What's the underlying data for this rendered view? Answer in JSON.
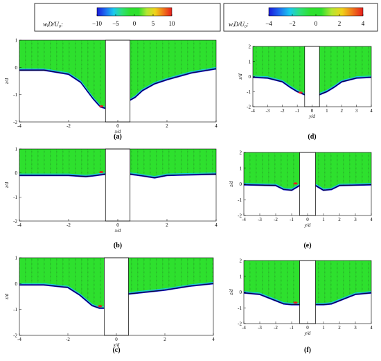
{
  "colorbars": [
    {
      "label": "wᵢD/U₀:",
      "ticks": [
        "−10",
        "−5",
        "0",
        "5",
        "10"
      ],
      "range": [
        -10,
        10
      ]
    },
    {
      "label": "wᵢD/U₀:",
      "ticks": [
        "−4",
        "−2",
        "0",
        "2",
        "4"
      ],
      "range": [
        -4,
        4
      ]
    }
  ],
  "colormap": [
    "#1a1adb",
    "#1e6cf0",
    "#1ac8f0",
    "#2ee07a",
    "#2ee02e",
    "#2ee02e",
    "#b4e632",
    "#f0d21a",
    "#f0781a",
    "#e61e1e"
  ],
  "chart_data": [
    {
      "panel": "(a)",
      "type": "heatmap",
      "xlabel": "x/d",
      "ylabel": "z/d",
      "xlim": [
        -4,
        4
      ],
      "ylim": [
        -2,
        1
      ],
      "xticks": [
        "-4",
        "-2",
        "0",
        "2",
        "4"
      ],
      "yticks": [
        "1",
        "0",
        "-1",
        "-2"
      ],
      "pier": [
        -0.5,
        0.5
      ],
      "bed_profile": {
        "x": [
          -4,
          -3,
          -2,
          -1.5,
          -1,
          -0.7,
          -0.5,
          0.5,
          0.7,
          1,
          1.5,
          2,
          3,
          4
        ],
        "z": [
          -0.1,
          -0.1,
          -0.25,
          -0.55,
          -1.15,
          -1.45,
          -1.5,
          -1.2,
          -1.1,
          -0.85,
          -0.6,
          -0.45,
          -0.2,
          -0.05
        ]
      }
    },
    {
      "panel": "(b)",
      "type": "heatmap",
      "xlabel": "x/d",
      "ylabel": "z/d",
      "xlim": [
        -4,
        4
      ],
      "ylim": [
        -2,
        1
      ],
      "xticks": [
        "-4",
        "-2",
        "0",
        "2",
        "4"
      ],
      "yticks": [
        "1",
        "0",
        "-1",
        "-2"
      ],
      "pier": [
        -0.5,
        0.5
      ],
      "bed_profile": {
        "x": [
          -4,
          -2,
          -1.3,
          -1,
          -0.5,
          0.5,
          1,
          1.5,
          2,
          4
        ],
        "z": [
          -0.1,
          -0.1,
          -0.15,
          -0.12,
          -0.05,
          -0.05,
          -0.12,
          -0.2,
          -0.1,
          -0.05
        ]
      }
    },
    {
      "panel": "(c)",
      "type": "heatmap",
      "xlabel": "x/d",
      "ylabel": "z/d",
      "xlim": [
        -4,
        4
      ],
      "ylim": [
        -2,
        1
      ],
      "xticks": [
        "-4",
        "-2",
        "0",
        "2",
        "4"
      ],
      "yticks": [
        "1",
        "0",
        "-1",
        "-2"
      ],
      "pier": [
        -0.5,
        0.5
      ],
      "bed_profile": {
        "x": [
          -4,
          -3,
          -2,
          -1.5,
          -1,
          -0.7,
          -0.5,
          0.5,
          1,
          1.5,
          2,
          3,
          4
        ],
        "z": [
          -0.05,
          -0.05,
          -0.15,
          -0.45,
          -0.85,
          -0.95,
          -0.95,
          -0.4,
          -0.35,
          -0.3,
          -0.25,
          -0.1,
          0
        ]
      }
    },
    {
      "panel": "(d)",
      "type": "heatmap",
      "xlabel": "y/d",
      "ylabel": "z/d",
      "xlim": [
        -4,
        4
      ],
      "ylim": [
        -2,
        2
      ],
      "xticks": [
        "-4",
        "-3",
        "-2",
        "-1",
        "0",
        "1",
        "2",
        "3",
        "4"
      ],
      "yticks": [
        "2",
        "1",
        "0",
        "-1",
        "-2"
      ],
      "pier": [
        -0.5,
        0.5
      ],
      "bed_profile": {
        "x": [
          -4,
          -3,
          -2,
          -1.5,
          -1,
          -0.5,
          0.5,
          1,
          1.5,
          2,
          3,
          4
        ],
        "z": [
          -0.05,
          -0.1,
          -0.35,
          -0.7,
          -1.0,
          -1.2,
          -1.2,
          -1.0,
          -0.7,
          -0.35,
          -0.1,
          -0.05
        ]
      }
    },
    {
      "panel": "(e)",
      "type": "heatmap",
      "xlabel": "y/d",
      "ylabel": "z/d",
      "xlim": [
        -4,
        4
      ],
      "ylim": [
        -2,
        2
      ],
      "xticks": [
        "-4",
        "-3",
        "-2",
        "-1",
        "0",
        "1",
        "2",
        "3",
        "4"
      ],
      "yticks": [
        "2",
        "1",
        "0",
        "-1",
        "-2"
      ],
      "pier": [
        -0.5,
        0.5
      ],
      "bed_profile": {
        "x": [
          -4,
          -2,
          -1.5,
          -1,
          -0.5,
          0.5,
          1,
          1.5,
          2,
          4
        ],
        "z": [
          -0.05,
          -0.1,
          -0.35,
          -0.4,
          -0.1,
          -0.1,
          -0.4,
          -0.35,
          -0.1,
          -0.05
        ]
      }
    },
    {
      "panel": "(f)",
      "type": "heatmap",
      "xlabel": "y/d",
      "ylabel": "z/d",
      "xlim": [
        -4,
        4
      ],
      "ylim": [
        -2,
        2
      ],
      "xticks": [
        "-4",
        "-3",
        "-2",
        "-1",
        "0",
        "1",
        "2",
        "3",
        "4"
      ],
      "yticks": [
        "2",
        "1",
        "0",
        "-1",
        "-2"
      ],
      "pier": [
        -0.5,
        0.5
      ],
      "bed_profile": {
        "x": [
          -4,
          -3,
          -2,
          -1.5,
          -1,
          -0.5,
          0.5,
          1,
          1.5,
          2,
          3,
          4
        ],
        "z": [
          -0.05,
          -0.15,
          -0.55,
          -0.75,
          -0.8,
          -0.8,
          -0.8,
          -0.8,
          -0.75,
          -0.55,
          -0.15,
          -0.05
        ]
      }
    }
  ]
}
